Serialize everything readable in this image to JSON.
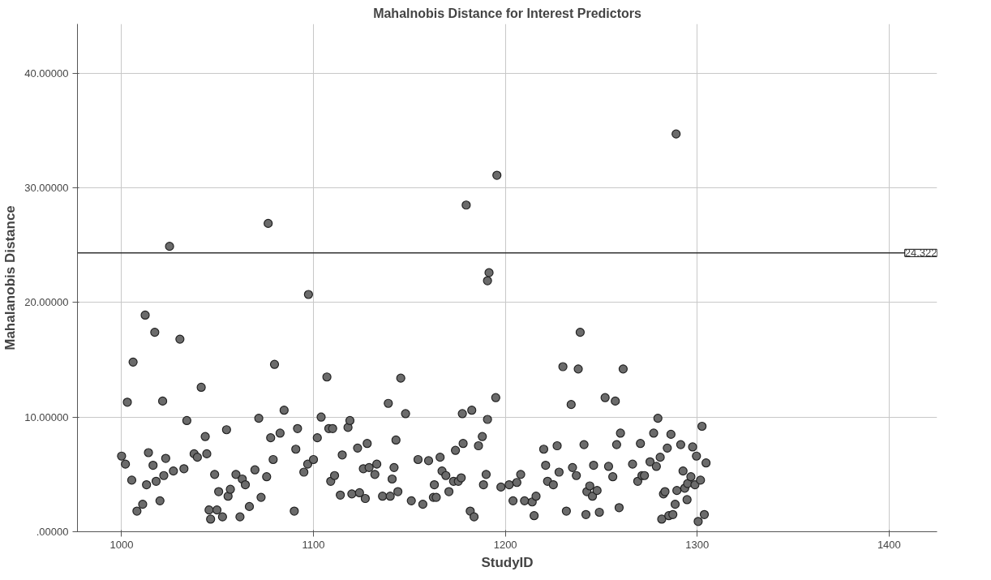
{
  "chart_data": {
    "type": "scatter",
    "title": "Mahalnobis Distance for Interest Predictors",
    "xlabel": "StudyID",
    "ylabel": "Mahalanobis Distance",
    "series": [
      {
        "color": "#6b6b6b",
        "x": [
          1000,
          1002,
          1003,
          1005.3,
          1006,
          1008,
          1011,
          1012.3,
          1013,
          1014,
          1016.4,
          1017.3,
          1018,
          1020,
          1021.4,
          1022,
          1023,
          1025,
          1027,
          1030.4,
          1032.5,
          1034,
          1037.8,
          1039.5,
          1041.5,
          1043.6,
          1044.4,
          1045.6,
          1046.4,
          1048.5,
          1049.7,
          1050.6,
          1052.6,
          1054.7,
          1055.5,
          1056.7,
          1059.6,
          1061.7,
          1062.9,
          1064.5,
          1066.6,
          1069.5,
          1071.5,
          1072.7,
          1075.6,
          1076.4,
          1077.7,
          1079,
          1079.7,
          1082.6,
          1084.7,
          1090,
          1090.8,
          1091.7,
          1095,
          1097,
          1097.4,
          1100,
          1102,
          1104,
          1107,
          1108,
          1109,
          1110,
          1111,
          1114,
          1115,
          1118,
          1119,
          1120,
          1123,
          1124,
          1126,
          1127,
          1128,
          1129,
          1132,
          1133,
          1136,
          1139,
          1140,
          1141,
          1142,
          1143,
          1144,
          1145.5,
          1148,
          1151,
          1154.5,
          1157,
          1160,
          1162.5,
          1163,
          1164,
          1166,
          1167,
          1169,
          1170.6,
          1173,
          1174,
          1175.5,
          1177,
          1177.6,
          1178,
          1179.6,
          1181.7,
          1182.5,
          1183.7,
          1186,
          1188,
          1188.6,
          1190,
          1190.7,
          1190.7,
          1191.5,
          1195,
          1195.6,
          1197.7,
          1202,
          1204,
          1206,
          1208,
          1210,
          1214,
          1215,
          1216,
          1220,
          1221,
          1222,
          1225,
          1227,
          1228,
          1230,
          1231.8,
          1234.3,
          1235,
          1237,
          1238,
          1239,
          1241,
          1242,
          1242.5,
          1244,
          1245.4,
          1246,
          1247.8,
          1249,
          1252,
          1253.8,
          1256,
          1257.3,
          1258,
          1259.3,
          1260,
          1261.4,
          1266.3,
          1269,
          1270.4,
          1271.2,
          1272.5,
          1275.4,
          1277.3,
          1278.7,
          1279.5,
          1280.7,
          1281.5,
          1282.4,
          1283.2,
          1284.4,
          1285.2,
          1286.3,
          1287.3,
          1288.5,
          1289,
          1289.4,
          1291.4,
          1292.6,
          1293.5,
          1294.7,
          1295,
          1296.7,
          1297.6,
          1298.8,
          1299.6,
          1300.5,
          1301.7,
          1302.5,
          1303.7,
          1304.6
        ],
        "values": [
          6.6,
          5.9,
          11.3,
          4.5,
          14.8,
          1.8,
          2.4,
          18.9,
          4.1,
          6.9,
          5.8,
          17.4,
          4.4,
          2.7,
          11.4,
          4.9,
          6.4,
          24.9,
          5.3,
          16.8,
          5.5,
          9.7,
          6.8,
          6.5,
          12.6,
          8.3,
          6.8,
          1.9,
          1.1,
          5.0,
          1.9,
          3.5,
          1.3,
          8.9,
          3.1,
          3.7,
          5.0,
          1.3,
          4.6,
          4.1,
          2.2,
          5.4,
          9.9,
          3.0,
          4.8,
          26.9,
          8.2,
          6.3,
          14.6,
          8.6,
          10.6,
          1.8,
          7.2,
          9.0,
          5.2,
          5.9,
          20.7,
          6.3,
          8.2,
          10.0,
          13.5,
          9.0,
          4.4,
          9.0,
          4.9,
          3.2,
          6.7,
          9.1,
          9.7,
          3.3,
          7.3,
          3.4,
          5.5,
          2.9,
          7.7,
          5.6,
          5.0,
          5.9,
          3.1,
          11.2,
          3.1,
          4.6,
          5.6,
          8.0,
          3.5,
          13.4,
          10.3,
          2.7,
          6.3,
          2.4,
          6.2,
          3.0,
          4.1,
          3.0,
          6.5,
          5.3,
          4.9,
          3.5,
          4.4,
          7.1,
          4.4,
          4.7,
          10.3,
          7.7,
          28.5,
          1.8,
          10.6,
          1.3,
          7.5,
          8.3,
          4.1,
          5.0,
          21.9,
          9.8,
          22.6,
          11.7,
          31.1,
          3.9,
          4.1,
          2.7,
          4.3,
          5.0,
          2.7,
          2.6,
          1.4,
          3.1,
          7.2,
          5.8,
          4.4,
          4.1,
          7.5,
          5.2,
          14.4,
          1.8,
          11.1,
          5.6,
          4.9,
          14.2,
          17.4,
          7.6,
          1.5,
          3.5,
          4.0,
          3.1,
          5.8,
          3.6,
          1.7,
          11.7,
          5.7,
          4.8,
          11.4,
          7.6,
          2.1,
          8.6,
          14.2,
          5.9,
          4.4,
          7.7,
          4.9,
          4.9,
          6.1,
          8.6,
          5.7,
          9.9,
          6.5,
          1.1,
          3.3,
          3.5,
          7.3,
          1.4,
          8.5,
          1.5,
          2.4,
          34.7,
          3.6,
          7.6,
          5.3,
          3.8,
          2.8,
          4.2,
          4.8,
          7.4,
          4.1,
          6.6,
          0.9,
          4.5,
          9.2,
          1.5,
          6.0
        ]
      }
    ],
    "xlim": [
      977,
      1425
    ],
    "xticks": [
      1000,
      1100,
      1200,
      1300,
      1400
    ],
    "ylim": [
      0,
      44.3
    ],
    "yticks": [
      {
        "value": 0,
        "label": ".00000"
      },
      {
        "value": 10,
        "label": "10.00000"
      },
      {
        "value": 20,
        "label": "20.00000"
      },
      {
        "value": 30,
        "label": "30.00000"
      },
      {
        "value": 40,
        "label": "40.00000"
      }
    ],
    "ref_lines": [
      {
        "axis": "y",
        "value": 24.322,
        "label": "24.322",
        "color": "#333333"
      }
    ],
    "grid": true,
    "marker": "circle"
  }
}
